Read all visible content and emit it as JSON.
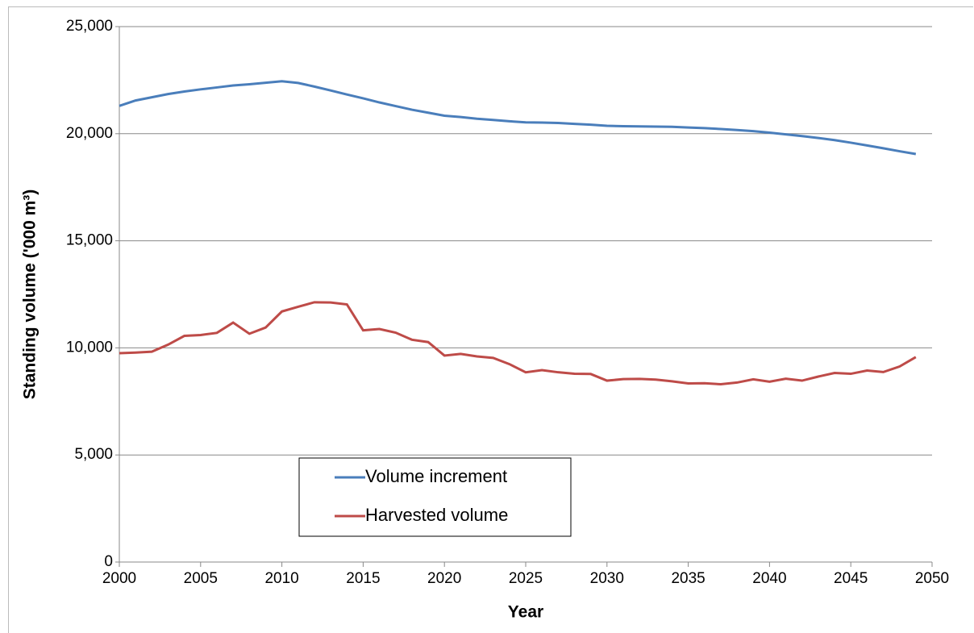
{
  "chart_data": {
    "type": "line",
    "x_label": "Year",
    "y_label": "Standing volume ('000 m³)",
    "x": [
      2000,
      2001,
      2002,
      2003,
      2004,
      2005,
      2006,
      2007,
      2008,
      2009,
      2010,
      2011,
      2012,
      2013,
      2014,
      2015,
      2016,
      2017,
      2018,
      2019,
      2020,
      2021,
      2022,
      2023,
      2024,
      2025,
      2026,
      2027,
      2028,
      2029,
      2030,
      2031,
      2032,
      2033,
      2034,
      2035,
      2036,
      2037,
      2038,
      2039,
      2040,
      2041,
      2042,
      2043,
      2044,
      2045,
      2046,
      2047,
      2048,
      2049
    ],
    "series": [
      {
        "name": "Volume increment",
        "color": "#4a7ebb",
        "values": [
          21300,
          21550,
          21700,
          21850,
          21970,
          22070,
          22160,
          22250,
          22310,
          22380,
          22450,
          22370,
          22200,
          22020,
          21830,
          21650,
          21460,
          21290,
          21120,
          20980,
          20840,
          20780,
          20700,
          20640,
          20580,
          20530,
          20520,
          20500,
          20460,
          20420,
          20370,
          20350,
          20340,
          20330,
          20320,
          20290,
          20260,
          20220,
          20170,
          20120,
          20050,
          19970,
          19890,
          19800,
          19700,
          19580,
          19450,
          19320,
          19180,
          19050
        ]
      },
      {
        "name": "Harvested volume",
        "color": "#be4b48",
        "values": [
          9750,
          9780,
          9820,
          10150,
          10560,
          10600,
          10700,
          11180,
          10660,
          10950,
          11700,
          11920,
          12130,
          12120,
          12030,
          10820,
          10880,
          10710,
          10380,
          10270,
          9640,
          9720,
          9600,
          9530,
          9240,
          8860,
          8960,
          8860,
          8790,
          8780,
          8470,
          8540,
          8550,
          8520,
          8440,
          8340,
          8350,
          8300,
          8380,
          8530,
          8420,
          8560,
          8470,
          8660,
          8830,
          8790,
          8940,
          8870,
          9130,
          9570
        ]
      }
    ],
    "xlim": [
      2000,
      2050
    ],
    "xticks": [
      2000,
      2005,
      2010,
      2015,
      2020,
      2025,
      2030,
      2035,
      2040,
      2045,
      2050
    ],
    "ylim": [
      0,
      25000
    ],
    "yticks": [
      0,
      {
        "value": 5000,
        "label": "5,000"
      },
      {
        "value": 10000,
        "label": "10,000"
      },
      {
        "value": 15000,
        "label": "15,000"
      },
      {
        "value": 20000,
        "label": "20,000"
      },
      {
        "value": 25000,
        "label": "25,000"
      }
    ],
    "grid": true,
    "legend": "lower left"
  }
}
